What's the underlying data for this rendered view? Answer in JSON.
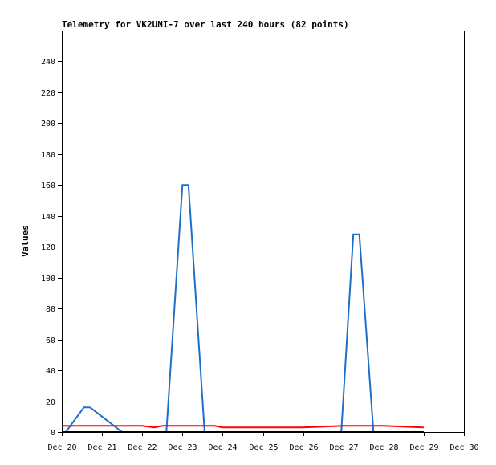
{
  "chart_data": {
    "type": "line",
    "title": "Telemetry for VK2UNI-7 over last 240 hours (82 points)",
    "xlabel": "",
    "ylabel": "Values",
    "x_ticks": [
      "Dec 20",
      "Dec 21",
      "Dec 22",
      "Dec 23",
      "Dec 24",
      "Dec 25",
      "Dec 26",
      "Dec 27",
      "Dec 28",
      "Dec 29",
      "Dec 30"
    ],
    "y_ticks": [
      0,
      20,
      40,
      60,
      80,
      100,
      120,
      140,
      160,
      180,
      200,
      220,
      240
    ],
    "xlim": [
      0,
      10
    ],
    "ylim": [
      0,
      260
    ],
    "x_unit_note": "days after Dec 20 00:00",
    "grid": false,
    "series": [
      {
        "color": "#1e6fc8",
        "points": [
          [
            0.1,
            0
          ],
          [
            0.55,
            16
          ],
          [
            0.7,
            16
          ],
          [
            1.5,
            0
          ],
          [
            2.6,
            0
          ],
          [
            3.0,
            160
          ],
          [
            3.15,
            160
          ],
          [
            3.55,
            0
          ],
          [
            6.95,
            0
          ],
          [
            7.25,
            128
          ],
          [
            7.4,
            128
          ],
          [
            7.75,
            0
          ]
        ]
      },
      {
        "color": "#ff0000",
        "points": [
          [
            0.0,
            4
          ],
          [
            1.0,
            4
          ],
          [
            2.0,
            4
          ],
          [
            2.3,
            3
          ],
          [
            2.5,
            4
          ],
          [
            3.0,
            4
          ],
          [
            3.8,
            4
          ],
          [
            4.0,
            3
          ],
          [
            5.0,
            3
          ],
          [
            5.3,
            3
          ],
          [
            6.0,
            3
          ],
          [
            6.5,
            3.5
          ],
          [
            7.0,
            4
          ],
          [
            8.0,
            4
          ],
          [
            8.5,
            3.5
          ],
          [
            9.0,
            3
          ]
        ]
      },
      {
        "color": "#000000",
        "points": [
          [
            0.0,
            0
          ],
          [
            9.0,
            0
          ]
        ]
      }
    ]
  }
}
